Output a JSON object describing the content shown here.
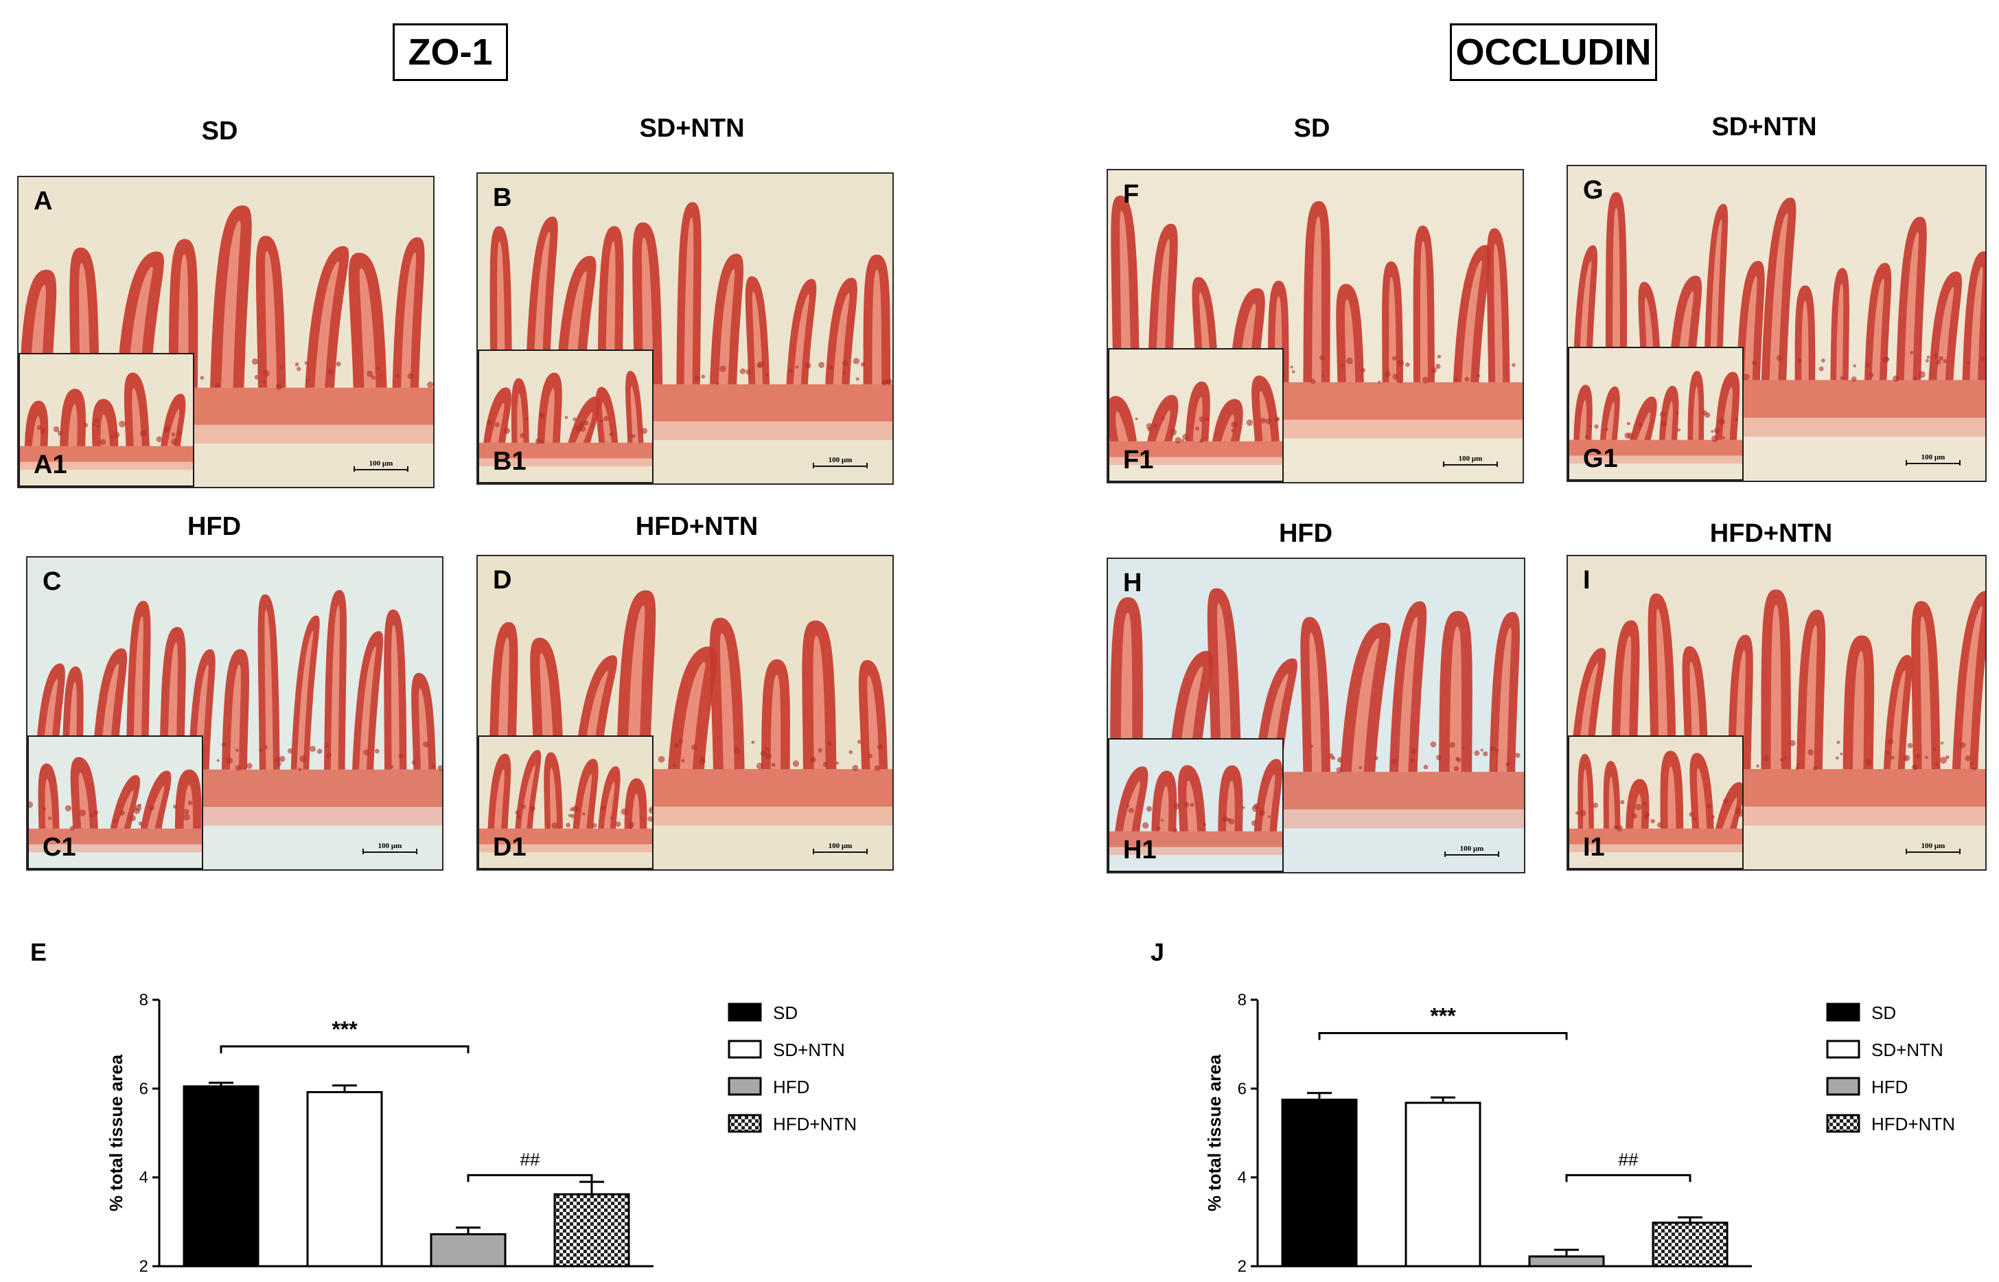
{
  "left_section": {
    "title": "ZO-1",
    "panels": [
      {
        "header": "SD",
        "letter": "A",
        "inset_letter": "A1",
        "scale": "100 μm"
      },
      {
        "header": "SD+NTN",
        "letter": "B",
        "inset_letter": "B1",
        "scale": "100 μm"
      },
      {
        "header": "HFD",
        "letter": "C",
        "inset_letter": "C1",
        "scale": "100 μm"
      },
      {
        "header": "HFD+NTN",
        "letter": "D",
        "inset_letter": "D1",
        "scale": "100 μm"
      }
    ],
    "chart_letter": "E"
  },
  "right_section": {
    "title": "OCCLUDIN",
    "panels": [
      {
        "header": "SD",
        "letter": "F",
        "inset_letter": "F1",
        "scale": "100 μm"
      },
      {
        "header": "SD+NTN",
        "letter": "G",
        "inset_letter": "G1",
        "scale": "100 μm"
      },
      {
        "header": "HFD",
        "letter": "H",
        "inset_letter": "H1",
        "scale": "100 μm"
      },
      {
        "header": "HFD+NTN",
        "letter": "I",
        "inset_letter": "I1",
        "scale": "100 μm"
      }
    ],
    "chart_letter": "J"
  },
  "chart_data": [
    {
      "type": "bar",
      "categories": [
        "SD",
        "SD+NTN",
        "HFD",
        "HFD+NTN"
      ],
      "values": [
        6.05,
        5.92,
        2.72,
        3.62
      ],
      "errors": [
        0.08,
        0.15,
        0.15,
        0.28
      ],
      "ylabel": "% total tissue area",
      "ylim": [
        2,
        8
      ],
      "yticks": [
        2,
        4,
        6,
        8
      ],
      "fills": [
        "solid-black",
        "white",
        "gray",
        "checkered"
      ],
      "legend": [
        "SD",
        "SD+NTN",
        "HFD",
        "HFD+NTN"
      ],
      "annotations": [
        {
          "text": "***",
          "from": "SD",
          "to": "HFD",
          "level": 6.95
        },
        {
          "text": "##",
          "from": "HFD",
          "to": "HFD+NTN",
          "level": 4.05
        }
      ]
    },
    {
      "type": "bar",
      "categories": [
        "SD",
        "SD+NTN",
        "HFD",
        "HFD+NTN"
      ],
      "values": [
        5.75,
        5.68,
        2.22,
        2.98
      ],
      "errors": [
        0.15,
        0.12,
        0.15,
        0.12
      ],
      "ylabel": "% total tissue area",
      "ylim": [
        2,
        8
      ],
      "yticks": [
        2,
        4,
        6,
        8
      ],
      "fills": [
        "solid-black",
        "white",
        "gray",
        "checkered"
      ],
      "legend": [
        "SD",
        "SD+NTN",
        "HFD",
        "HFD+NTN"
      ],
      "annotations": [
        {
          "text": "***",
          "from": "SD",
          "to": "HFD",
          "level": 7.25
        },
        {
          "text": "##",
          "from": "HFD",
          "to": "HFD+NTN",
          "level": 4.05
        }
      ]
    }
  ],
  "colors": {
    "tissue_dark": "#c73a2e",
    "tissue_mid": "#de6a55",
    "tissue_light": "#ee9a86",
    "background_warm": "#ede4cf",
    "background_cool": "#e2ebe9",
    "bar_gray": "#a8a8a8"
  }
}
